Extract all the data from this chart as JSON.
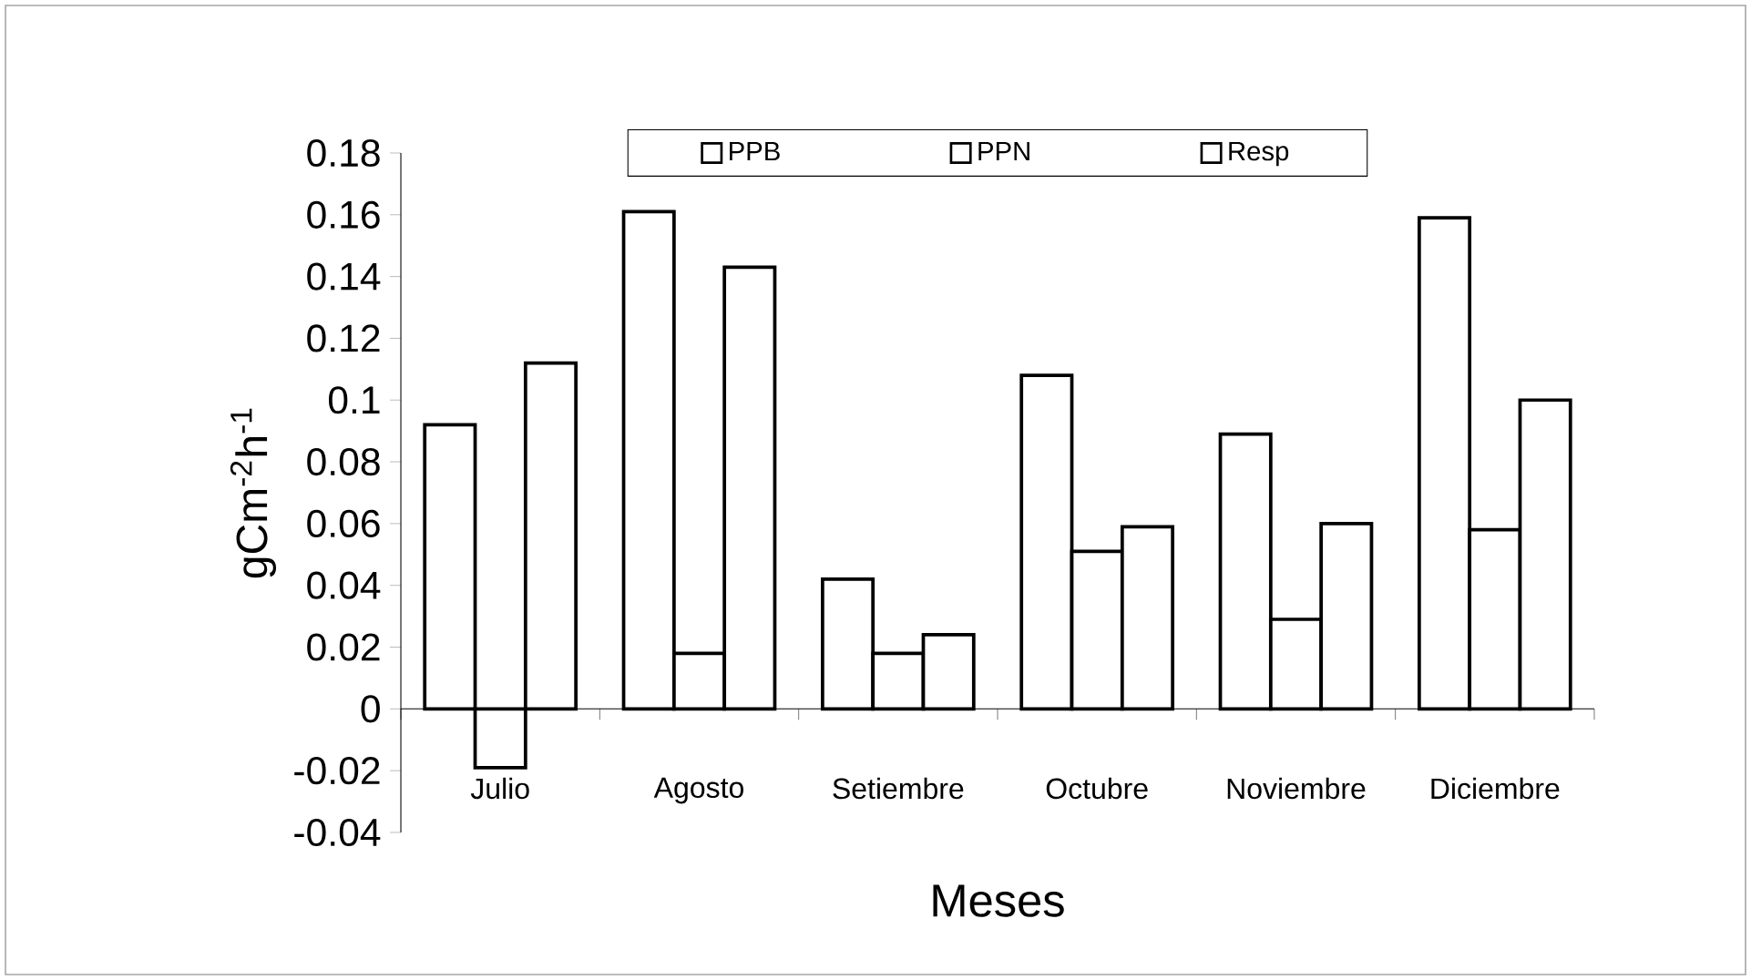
{
  "chart_data": {
    "type": "bar",
    "xlabel": "Meses",
    "ylabel": "gCm$^{-2}$h$^{-1}$",
    "categories": [
      "Julio",
      "Agosto",
      "Setiembre",
      "Octubre",
      "Noviembre",
      "Diciembre"
    ],
    "series": [
      {
        "name": "PPB",
        "color": "#ffffff",
        "values": [
          0.092,
          0.161,
          0.042,
          0.108,
          0.089,
          0.159
        ]
      },
      {
        "name": "PPN",
        "color": "#ffffff",
        "values": [
          -0.019,
          0.018,
          0.018,
          0.051,
          0.029,
          0.058
        ]
      },
      {
        "name": "Resp",
        "color": "#ffffff",
        "values": [
          0.112,
          0.143,
          0.024,
          0.059,
          0.06,
          0.1
        ]
      }
    ],
    "ylim": [
      -0.04,
      0.18
    ],
    "yticks": [
      -0.04,
      -0.02,
      0,
      0.02,
      0.04,
      0.06,
      0.08,
      0.1,
      0.12,
      0.14,
      0.16,
      0.18
    ],
    "grid": false,
    "legend": "top"
  }
}
